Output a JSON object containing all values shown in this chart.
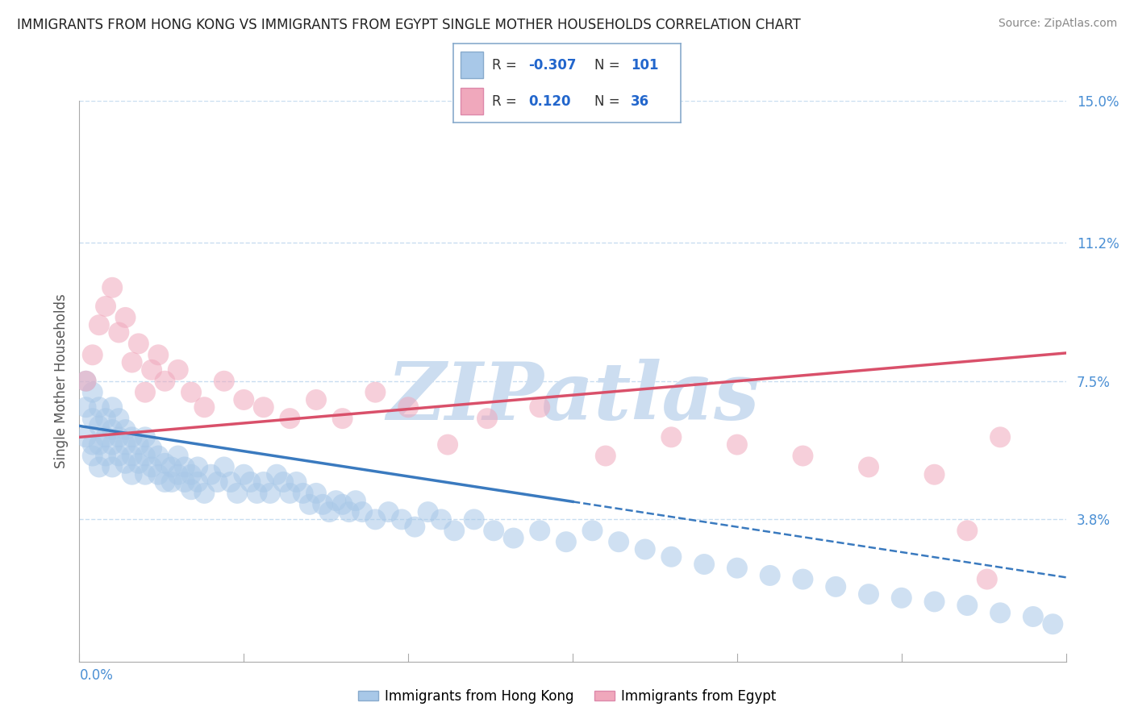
{
  "title": "IMMIGRANTS FROM HONG KONG VS IMMIGRANTS FROM EGYPT SINGLE MOTHER HOUSEHOLDS CORRELATION CHART",
  "source": "Source: ZipAtlas.com",
  "ylabel_label": "Single Mother Households",
  "x_lim": [
    0.0,
    0.15
  ],
  "y_lim": [
    0.0,
    0.15
  ],
  "hk_R": -0.307,
  "hk_N": 101,
  "eg_R": 0.12,
  "eg_N": 36,
  "hk_color": "#a8c8e8",
  "eg_color": "#f0a8bc",
  "hk_line_color": "#3a7abf",
  "eg_line_color": "#d9506a",
  "watermark_color": "#ccddf0",
  "background_color": "#ffffff",
  "grid_color": "#c8ddf0",
  "hk_line_intercept": 0.063,
  "hk_line_slope": -0.27,
  "eg_line_intercept": 0.06,
  "eg_line_slope": 0.15,
  "hk_scatter_x": [
    0.001,
    0.001,
    0.001,
    0.002,
    0.002,
    0.002,
    0.002,
    0.003,
    0.003,
    0.003,
    0.003,
    0.004,
    0.004,
    0.004,
    0.005,
    0.005,
    0.005,
    0.005,
    0.006,
    0.006,
    0.006,
    0.007,
    0.007,
    0.007,
    0.008,
    0.008,
    0.008,
    0.009,
    0.009,
    0.01,
    0.01,
    0.01,
    0.011,
    0.011,
    0.012,
    0.012,
    0.013,
    0.013,
    0.014,
    0.014,
    0.015,
    0.015,
    0.016,
    0.016,
    0.017,
    0.017,
    0.018,
    0.018,
    0.019,
    0.02,
    0.021,
    0.022,
    0.023,
    0.024,
    0.025,
    0.026,
    0.027,
    0.028,
    0.029,
    0.03,
    0.031,
    0.032,
    0.033,
    0.034,
    0.035,
    0.036,
    0.037,
    0.038,
    0.039,
    0.04,
    0.041,
    0.042,
    0.043,
    0.045,
    0.047,
    0.049,
    0.051,
    0.053,
    0.055,
    0.057,
    0.06,
    0.063,
    0.066,
    0.07,
    0.074,
    0.078,
    0.082,
    0.086,
    0.09,
    0.095,
    0.1,
    0.105,
    0.11,
    0.115,
    0.12,
    0.125,
    0.13,
    0.135,
    0.14,
    0.145,
    0.148
  ],
  "hk_scatter_y": [
    0.075,
    0.068,
    0.06,
    0.072,
    0.065,
    0.058,
    0.055,
    0.068,
    0.063,
    0.058,
    0.052,
    0.065,
    0.06,
    0.055,
    0.068,
    0.062,
    0.058,
    0.052,
    0.065,
    0.06,
    0.055,
    0.062,
    0.058,
    0.053,
    0.06,
    0.055,
    0.05,
    0.058,
    0.053,
    0.06,
    0.055,
    0.05,
    0.057,
    0.052,
    0.055,
    0.05,
    0.053,
    0.048,
    0.052,
    0.048,
    0.055,
    0.05,
    0.052,
    0.048,
    0.05,
    0.046,
    0.052,
    0.048,
    0.045,
    0.05,
    0.048,
    0.052,
    0.048,
    0.045,
    0.05,
    0.048,
    0.045,
    0.048,
    0.045,
    0.05,
    0.048,
    0.045,
    0.048,
    0.045,
    0.042,
    0.045,
    0.042,
    0.04,
    0.043,
    0.042,
    0.04,
    0.043,
    0.04,
    0.038,
    0.04,
    0.038,
    0.036,
    0.04,
    0.038,
    0.035,
    0.038,
    0.035,
    0.033,
    0.035,
    0.032,
    0.035,
    0.032,
    0.03,
    0.028,
    0.026,
    0.025,
    0.023,
    0.022,
    0.02,
    0.018,
    0.017,
    0.016,
    0.015,
    0.013,
    0.012,
    0.01
  ],
  "eg_scatter_x": [
    0.001,
    0.002,
    0.003,
    0.004,
    0.005,
    0.006,
    0.007,
    0.008,
    0.009,
    0.01,
    0.011,
    0.012,
    0.013,
    0.015,
    0.017,
    0.019,
    0.022,
    0.025,
    0.028,
    0.032,
    0.036,
    0.04,
    0.045,
    0.05,
    0.056,
    0.062,
    0.07,
    0.08,
    0.09,
    0.1,
    0.11,
    0.12,
    0.13,
    0.135,
    0.138,
    0.14
  ],
  "eg_scatter_y": [
    0.075,
    0.082,
    0.09,
    0.095,
    0.1,
    0.088,
    0.092,
    0.08,
    0.085,
    0.072,
    0.078,
    0.082,
    0.075,
    0.078,
    0.072,
    0.068,
    0.075,
    0.07,
    0.068,
    0.065,
    0.07,
    0.065,
    0.072,
    0.068,
    0.058,
    0.065,
    0.068,
    0.055,
    0.06,
    0.058,
    0.055,
    0.052,
    0.05,
    0.035,
    0.022,
    0.06
  ]
}
